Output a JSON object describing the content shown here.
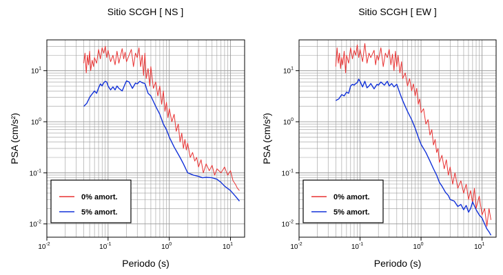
{
  "colors": {
    "undamped": "#e83030",
    "damped": "#1030d8",
    "grid": "#9a9a9a",
    "axis": "#000000"
  },
  "chart_data": [
    {
      "type": "line",
      "title": "Sitio SCGH [ NS ]",
      "xlabel": "Periodo (s)",
      "ylabel": "PSA (cm/s²)",
      "xscale": "log",
      "yscale": "log",
      "xlim": [
        0.01,
        17
      ],
      "ylim": [
        0.0055,
        40
      ],
      "grid": true,
      "legend_position": "bottom-left",
      "x_tick_labels": [
        {
          "base": "10",
          "exp": "-2",
          "value": 0.01
        },
        {
          "base": "10",
          "exp": "-1",
          "value": 0.1
        },
        {
          "base": "10",
          "exp": "0",
          "value": 1
        },
        {
          "base": "10",
          "exp": "1",
          "value": 10
        }
      ],
      "y_tick_labels": [
        {
          "base": "10",
          "exp": "-2",
          "value": 0.01
        },
        {
          "base": "10",
          "exp": "-1",
          "value": 0.1
        },
        {
          "base": "10",
          "exp": "0",
          "value": 1
        },
        {
          "base": "10",
          "exp": "1",
          "value": 10
        }
      ],
      "series": [
        {
          "name": "0% amort.",
          "color": "#e83030",
          "x": [
            0.04,
            0.042,
            0.044,
            0.046,
            0.048,
            0.05,
            0.052,
            0.055,
            0.058,
            0.06,
            0.065,
            0.07,
            0.075,
            0.08,
            0.085,
            0.09,
            0.095,
            0.1,
            0.11,
            0.12,
            0.13,
            0.14,
            0.15,
            0.17,
            0.18,
            0.19,
            0.2,
            0.22,
            0.24,
            0.26,
            0.28,
            0.3,
            0.32,
            0.34,
            0.36,
            0.38,
            0.4,
            0.42,
            0.45,
            0.48,
            0.5,
            0.55,
            0.6,
            0.65,
            0.7,
            0.75,
            0.8,
            0.85,
            0.9,
            0.95,
            1.0,
            1.1,
            1.2,
            1.3,
            1.4,
            1.5,
            1.6,
            1.7,
            1.8,
            1.9,
            2.0,
            2.2,
            2.4,
            2.6,
            2.8,
            3.0,
            3.3,
            3.6,
            4.0,
            4.5,
            5.0,
            5.5,
            6.0,
            7.0,
            8.0,
            9.0,
            10.0,
            11.0,
            12.0,
            13.0,
            14.0
          ],
          "y": [
            14,
            22,
            9,
            20,
            13,
            24,
            10,
            16,
            12,
            18,
            14,
            26,
            17,
            28,
            22,
            30,
            18,
            25,
            15,
            20,
            13,
            24,
            14,
            27,
            17,
            23,
            15,
            20,
            26,
            12,
            22,
            18,
            28,
            12,
            20,
            8,
            22,
            7,
            11,
            5,
            12,
            4.5,
            6,
            3.2,
            5,
            2.2,
            4,
            1.6,
            2.4,
            1.2,
            1.8,
            1.0,
            1.4,
            0.65,
            0.9,
            0.4,
            0.6,
            0.3,
            0.45,
            0.28,
            0.38,
            0.2,
            0.25,
            0.17,
            0.2,
            0.13,
            0.18,
            0.1,
            0.15,
            0.11,
            0.14,
            0.09,
            0.12,
            0.1,
            0.13,
            0.09,
            0.11,
            0.07,
            0.06,
            0.05,
            0.045
          ]
        },
        {
          "name": "5% amort.",
          "color": "#1030d8",
          "x": [
            0.04,
            0.045,
            0.05,
            0.055,
            0.06,
            0.065,
            0.07,
            0.075,
            0.08,
            0.085,
            0.09,
            0.095,
            0.1,
            0.11,
            0.12,
            0.13,
            0.14,
            0.15,
            0.17,
            0.19,
            0.2,
            0.22,
            0.25,
            0.28,
            0.3,
            0.33,
            0.36,
            0.4,
            0.45,
            0.5,
            0.55,
            0.6,
            0.7,
            0.8,
            0.9,
            1.0,
            1.2,
            1.5,
            1.7,
            2.0,
            2.5,
            3.0,
            3.5,
            4.0,
            5.0,
            6.0,
            7.0,
            8.0,
            10.0,
            12.0,
            14.0
          ],
          "y": [
            2.0,
            2.3,
            3.0,
            3.5,
            4.0,
            3.6,
            4.6,
            5.5,
            5.0,
            5.8,
            6.2,
            6.0,
            5.0,
            4.2,
            4.8,
            4.2,
            5.0,
            4.5,
            4.0,
            5.5,
            6.3,
            6.0,
            4.5,
            5.7,
            5.5,
            6.2,
            5.8,
            5.6,
            3.6,
            3.2,
            2.5,
            2.0,
            1.4,
            0.9,
            0.7,
            0.5,
            0.32,
            0.2,
            0.15,
            0.1,
            0.09,
            0.085,
            0.08,
            0.082,
            0.08,
            0.075,
            0.065,
            0.055,
            0.045,
            0.035,
            0.028
          ]
        }
      ]
    },
    {
      "type": "line",
      "title": "Sitio SCGH [ EW ]",
      "xlabel": "Periodo (s)",
      "ylabel": "PSA (cm/s²)",
      "xscale": "log",
      "yscale": "log",
      "xlim": [
        0.01,
        17
      ],
      "ylim": [
        0.0055,
        40
      ],
      "grid": true,
      "legend_position": "bottom-left",
      "x_tick_labels": [
        {
          "base": "10",
          "exp": "-2",
          "value": 0.01
        },
        {
          "base": "10",
          "exp": "-1",
          "value": 0.1
        },
        {
          "base": "10",
          "exp": "0",
          "value": 1
        },
        {
          "base": "10",
          "exp": "1",
          "value": 10
        }
      ],
      "y_tick_labels": [
        {
          "base": "10",
          "exp": "-2",
          "value": 0.01
        },
        {
          "base": "10",
          "exp": "-1",
          "value": 0.1
        },
        {
          "base": "10",
          "exp": "0",
          "value": 1
        },
        {
          "base": "10",
          "exp": "1",
          "value": 10
        }
      ],
      "series": [
        {
          "name": "0% amort.",
          "color": "#e83030",
          "x": [
            0.04,
            0.042,
            0.044,
            0.046,
            0.048,
            0.05,
            0.052,
            0.055,
            0.058,
            0.06,
            0.065,
            0.07,
            0.075,
            0.08,
            0.085,
            0.09,
            0.095,
            0.1,
            0.11,
            0.12,
            0.13,
            0.14,
            0.15,
            0.17,
            0.18,
            0.19,
            0.2,
            0.22,
            0.24,
            0.26,
            0.28,
            0.3,
            0.32,
            0.34,
            0.36,
            0.38,
            0.4,
            0.42,
            0.45,
            0.48,
            0.5,
            0.55,
            0.6,
            0.65,
            0.7,
            0.75,
            0.8,
            0.85,
            0.9,
            0.95,
            1.0,
            1.1,
            1.2,
            1.3,
            1.4,
            1.5,
            1.6,
            1.7,
            1.8,
            1.9,
            2.0,
            2.2,
            2.4,
            2.6,
            2.8,
            3.0,
            3.3,
            3.6,
            4.0,
            4.5,
            5.0,
            5.5,
            6.0,
            6.5,
            7.0,
            7.5,
            8.0,
            9.0,
            10.0,
            11.0,
            12.0,
            13.0,
            14.0
          ],
          "y": [
            12,
            28,
            14,
            22,
            11,
            18,
            13,
            24,
            9,
            20,
            14,
            28,
            17,
            25,
            20,
            32,
            18,
            26,
            15,
            34,
            14,
            22,
            18,
            25,
            13,
            20,
            16,
            28,
            12,
            22,
            18,
            26,
            13,
            21,
            10,
            24,
            12,
            20,
            9,
            15,
            7,
            9,
            5,
            7,
            4,
            5.5,
            3.2,
            4.5,
            2.2,
            2.8,
            1.5,
            1.8,
            0.9,
            1.1,
            0.55,
            0.7,
            0.35,
            0.45,
            0.25,
            0.3,
            0.16,
            0.22,
            0.12,
            0.18,
            0.09,
            0.13,
            0.06,
            0.1,
            0.05,
            0.07,
            0.04,
            0.06,
            0.03,
            0.045,
            0.025,
            0.05,
            0.02,
            0.035,
            0.015,
            0.02,
            0.009,
            0.02,
            0.012
          ]
        },
        {
          "name": "5% amort.",
          "color": "#1030d8",
          "x": [
            0.04,
            0.045,
            0.05,
            0.055,
            0.06,
            0.065,
            0.07,
            0.075,
            0.08,
            0.085,
            0.09,
            0.095,
            0.1,
            0.11,
            0.12,
            0.13,
            0.14,
            0.15,
            0.17,
            0.19,
            0.2,
            0.22,
            0.25,
            0.28,
            0.3,
            0.33,
            0.36,
            0.4,
            0.45,
            0.5,
            0.55,
            0.6,
            0.7,
            0.8,
            0.9,
            1.0,
            1.2,
            1.4,
            1.6,
            1.8,
            2.0,
            2.2,
            2.5,
            2.8,
            3.0,
            3.5,
            4.0,
            4.5,
            5.0,
            5.5,
            6.0,
            6.5,
            7.0,
            8.0,
            9.0,
            10.0,
            11.0,
            12.0,
            13.0,
            14.0
          ],
          "y": [
            2.6,
            2.8,
            3.4,
            3.2,
            3.8,
            3.6,
            5.0,
            5.4,
            5.2,
            5.6,
            5.8,
            6.8,
            6.2,
            4.8,
            6.2,
            4.6,
            5.0,
            5.6,
            4.4,
            5.4,
            5.2,
            6.0,
            5.2,
            6.2,
            5.0,
            5.6,
            4.8,
            5.4,
            3.6,
            2.6,
            2.0,
            1.6,
            1.1,
            0.75,
            0.5,
            0.36,
            0.25,
            0.17,
            0.12,
            0.09,
            0.065,
            0.055,
            0.042,
            0.036,
            0.03,
            0.028,
            0.022,
            0.024,
            0.019,
            0.023,
            0.017,
            0.02,
            0.027,
            0.019,
            0.015,
            0.013,
            0.01,
            0.008,
            0.007,
            0.006
          ]
        }
      ]
    }
  ]
}
